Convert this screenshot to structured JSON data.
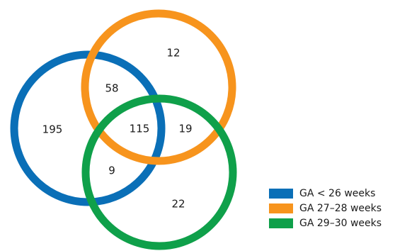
{
  "sets": [
    {
      "id": "lt26",
      "label": "GA < 26 weeks",
      "color": "#0a6fb7"
    },
    {
      "id": "w27_28",
      "label": "GA 27–28 weeks",
      "color": "#f7941d"
    },
    {
      "id": "w29_30",
      "label": "GA 29–30 weeks",
      "color": "#0fa04a"
    }
  ],
  "regions": {
    "only_lt26": "195",
    "only_w27_28": "12",
    "only_w29_30": "22",
    "lt26_and_w27_28": "58",
    "lt26_and_w29_30": "9",
    "w27_28_and_w29_30": "19",
    "all_three": "115"
  }
}
